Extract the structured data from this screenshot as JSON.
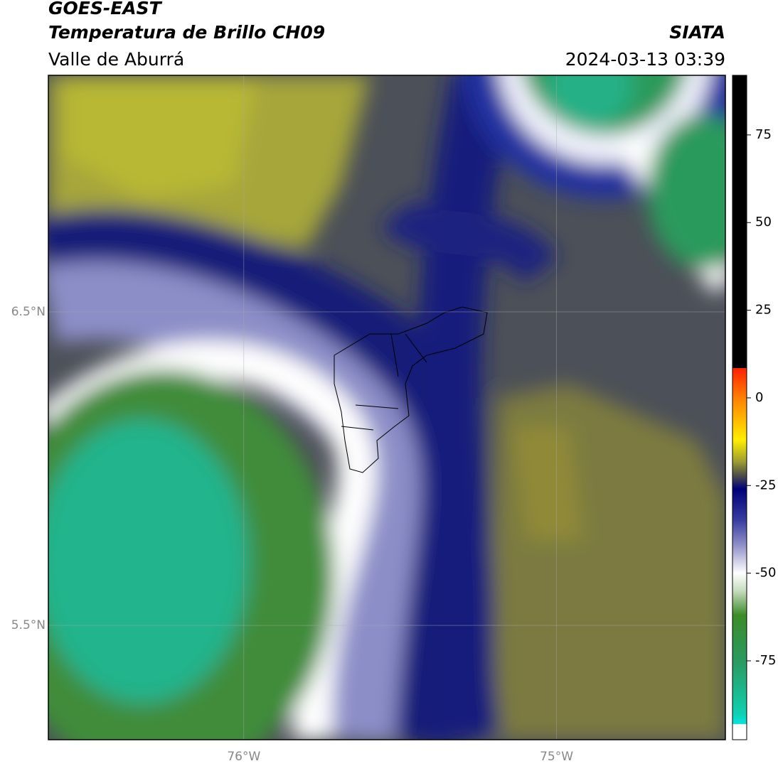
{
  "header": {
    "title": "GOES-EAST",
    "subtitle": "Temperatura de Brillo CH09",
    "region": "Valle de Aburrá",
    "source": "SIATA",
    "timestamp": "2024-03-13 03:39"
  },
  "map": {
    "lat_range": [
      5.135,
      7.255
    ],
    "lon_range": [
      -76.625,
      -74.46
    ],
    "lat_ticks": [
      {
        "value": 6.5,
        "label": "6.5°N"
      },
      {
        "value": 5.5,
        "label": "5.5°N"
      }
    ],
    "lon_ticks": [
      {
        "value": -76,
        "label": "76°W"
      },
      {
        "value": -75,
        "label": "75°W"
      }
    ]
  },
  "colorbar": {
    "range": [
      -97.5,
      92
    ],
    "ticks": [
      75,
      50,
      25,
      0,
      -25,
      -50,
      -75
    ],
    "stops": [
      {
        "value": 92,
        "color": "#000000"
      },
      {
        "value": 8.5,
        "color": "#000000"
      },
      {
        "value": 8.5,
        "color": "#ff2000"
      },
      {
        "value": 0,
        "color": "#ff8000"
      },
      {
        "value": -12,
        "color": "#ffee00"
      },
      {
        "value": -18,
        "color": "#a0a030"
      },
      {
        "value": -22,
        "color": "#505048"
      },
      {
        "value": -26,
        "color": "#00007a"
      },
      {
        "value": -35,
        "color": "#3a3ea0"
      },
      {
        "value": -42,
        "color": "#9090c8"
      },
      {
        "value": -50,
        "color": "#ffffff"
      },
      {
        "value": -55,
        "color": "#c8dcc0"
      },
      {
        "value": -62,
        "color": "#3c8c28"
      },
      {
        "value": -75,
        "color": "#2a9a60"
      },
      {
        "value": -90,
        "color": "#10d0b0"
      },
      {
        "value": -93,
        "color": "#00e8e0"
      },
      {
        "value": -93,
        "color": "#ffffff"
      },
      {
        "value": -97.5,
        "color": "#ffffff"
      }
    ]
  }
}
